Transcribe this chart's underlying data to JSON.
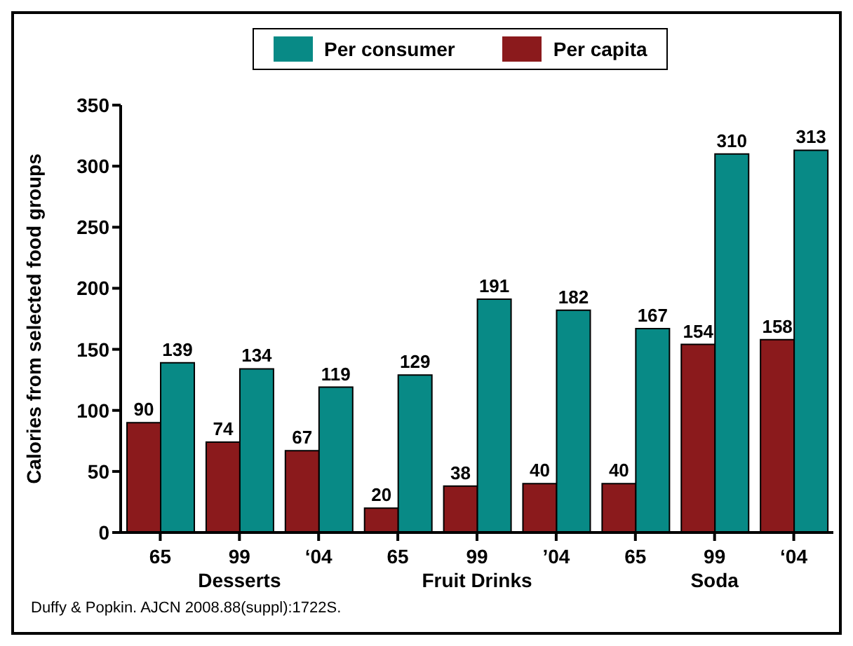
{
  "chart_data": {
    "type": "bar",
    "ylabel": "Calories from selected food groups",
    "categories": [
      "65",
      "99",
      "‘04",
      "65",
      "99",
      "’04",
      "65",
      "99",
      "‘04"
    ],
    "series": [
      {
        "name": "Per consumer",
        "color": "#088a86",
        "values": [
          139,
          134,
          119,
          129,
          191,
          182,
          167,
          310,
          313
        ]
      },
      {
        "name": "Per capita",
        "color": "#8b1a1c",
        "values": [
          90,
          74,
          67,
          20,
          38,
          40,
          40,
          154,
          158
        ]
      }
    ],
    "ylim": [
      0,
      350
    ],
    "yticks": [
      0,
      50,
      100,
      150,
      200,
      250,
      300,
      350
    ],
    "data_labels": true,
    "legend": "top",
    "grid": false,
    "annotations": [
      "Desserts",
      "Fruit Drinks",
      "Soda",
      "Duffy & Popkin. AJCN 2008.88(suppl):1722S."
    ]
  }
}
